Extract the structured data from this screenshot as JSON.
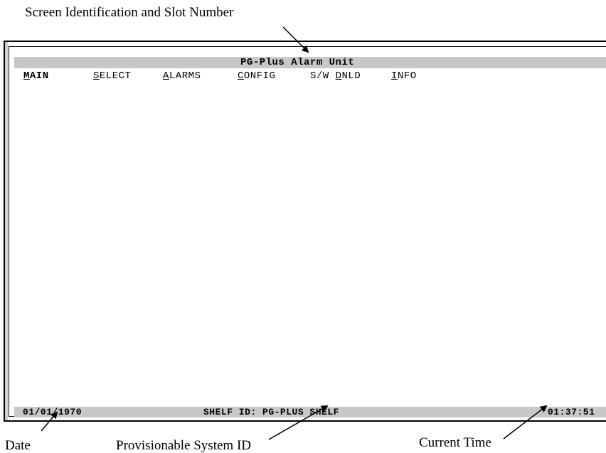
{
  "callouts": {
    "screen_id": "Screen Identification and Slot Number",
    "date": "Date",
    "system_id": "Provisionable System ID",
    "current_time": "Current Time"
  },
  "terminal": {
    "title": "PG-Plus Alarm Unit",
    "menu": [
      {
        "hot": "M",
        "rest": "AIN",
        "active": true
      },
      {
        "hot": "S",
        "rest": "ELECT",
        "active": false
      },
      {
        "hot": "A",
        "rest": "LARMS",
        "active": false
      },
      {
        "hot": "C",
        "rest": "ONFIG",
        "active": false
      },
      {
        "prefix": "S/W ",
        "hot": "D",
        "rest": "NLD",
        "active": false
      },
      {
        "hot": "I",
        "rest": "NFO",
        "active": false
      }
    ],
    "status": {
      "date": "01/01/1970",
      "shelf_id": "SHELF ID: PG-PLUS SHELF",
      "time": "01:37:51"
    }
  }
}
